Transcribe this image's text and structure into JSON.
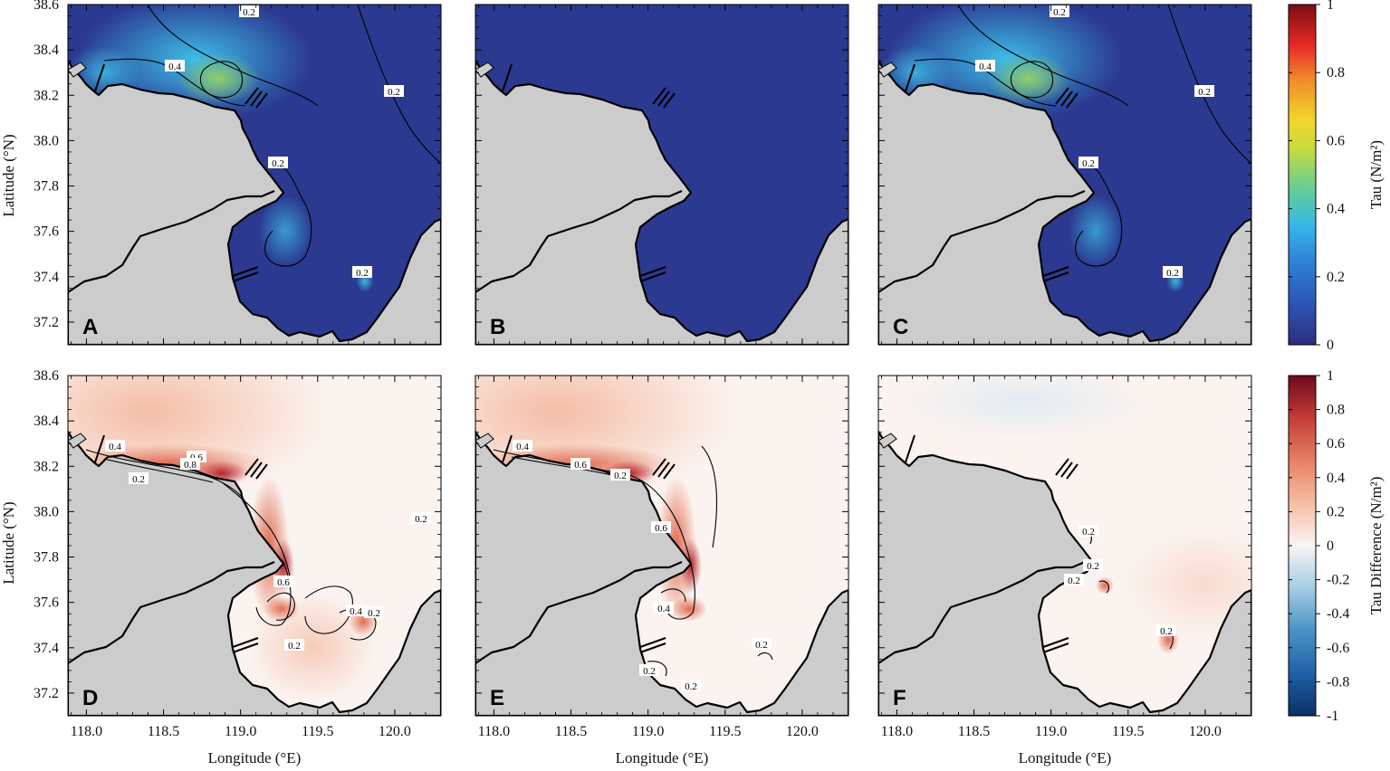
{
  "figure": {
    "x_axis_label": "Longitude (°E)",
    "y_axis_label": "Latitude (°N)",
    "panels": [
      {
        "letter": "A",
        "row": "top",
        "contour_labels": [
          "0.2",
          "0.4",
          "0.2",
          "0.2",
          "0.2"
        ]
      },
      {
        "letter": "B",
        "row": "top",
        "contour_labels": []
      },
      {
        "letter": "C",
        "row": "top",
        "contour_labels": [
          "0.2",
          "0.4",
          "0.2",
          "0.2",
          "0.2"
        ]
      },
      {
        "letter": "D",
        "row": "bottom",
        "contour_labels": [
          "0.4",
          "0.6",
          "0.8",
          "0.2",
          "0.2",
          "0.6",
          "0.2",
          "0.4",
          "0.2"
        ]
      },
      {
        "letter": "E",
        "row": "bottom",
        "contour_labels": [
          "0.4",
          "0.6",
          "0.2",
          "0.6",
          "0.4",
          "0.2",
          "0.2",
          "0.2"
        ]
      },
      {
        "letter": "F",
        "row": "bottom",
        "contour_labels": [
          "0.2",
          "0.2",
          "0.2",
          "0.2"
        ]
      }
    ]
  },
  "chart_data": {
    "type": "heatmap",
    "x_ticks": [
      118.0,
      118.5,
      119.0,
      119.5,
      120.0
    ],
    "y_ticks": [
      37.2,
      37.4,
      37.6,
      37.8,
      38.0,
      38.2,
      38.4,
      38.6
    ],
    "x_tick_labels": [
      "118.0",
      "118.5",
      "119.0",
      "119.5",
      "120.0"
    ],
    "y_tick_labels": [
      "37.2",
      "37.4",
      "37.6",
      "37.8",
      "38.0",
      "38.2",
      "38.4",
      "38.6"
    ],
    "xlim": [
      117.88,
      120.3
    ],
    "ylim": [
      37.1,
      38.6
    ],
    "colorbars": [
      {
        "label": "Tau (N/m²)",
        "range": [
          0,
          1
        ],
        "tick_labels": [
          "0",
          "0.2",
          "0.4",
          "0.6",
          "0.8",
          "1"
        ],
        "colormap": "jet"
      },
      {
        "label": "Tau Difference (N/m²)",
        "range": [
          -1,
          1
        ],
        "tick_labels": [
          "-1",
          "-0.8",
          "-0.6",
          "-0.4",
          "-0.2",
          "0",
          "0.2",
          "0.4",
          "0.6",
          "0.8",
          "1"
        ],
        "colormap": "RdBu_r"
      }
    ],
    "colors": {
      "land": "#cccccc",
      "tau_low": "#2b3990",
      "tau_mid": "#2f9fe0",
      "tau_peak": "#8fcf6a",
      "diff_zero": "#fbf3ef",
      "diff_high": "#9e1b1b"
    }
  }
}
